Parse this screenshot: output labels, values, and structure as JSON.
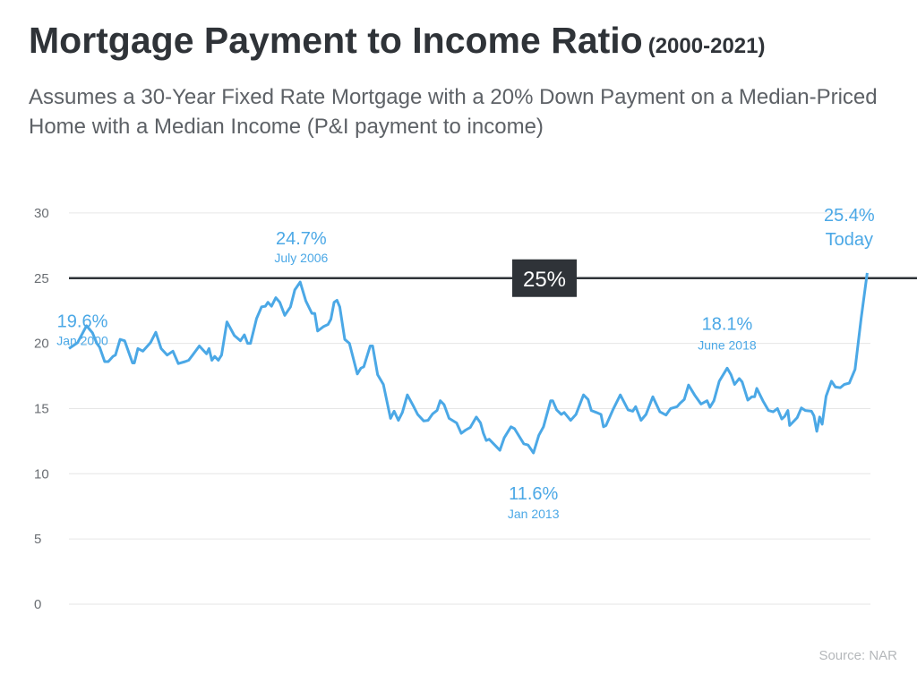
{
  "title": "Mortgage Payment to Income Ratio",
  "title_years": "(2000-2021)",
  "subtitle": "Assumes a 30-Year Fixed Rate Mortgage with a 20% Down Payment on a Median-Priced Home with a Median Income (P&I payment to income)",
  "source": "Source: NAR",
  "colors": {
    "line": "#4ba8e6",
    "reference": "#2f3338",
    "text": "#2f3338",
    "grid": "#e6e6e6"
  },
  "chart_data": {
    "type": "line",
    "title": "Mortgage Payment to Income Ratio (2000-2021)",
    "xlabel": "",
    "ylabel": "",
    "ylim": [
      0,
      30
    ],
    "yticks": [
      "0",
      "5",
      "10",
      "15",
      "20",
      "25",
      "30"
    ],
    "grid": true,
    "reference_line": {
      "value": 25,
      "label": "25%"
    },
    "series": [
      {
        "x": [
          2000.0,
          2000.24,
          2000.49,
          2000.66,
          2000.78,
          2000.86,
          2001.0,
          2001.1,
          2001.23,
          2001.3,
          2001.43,
          2001.56,
          2001.78,
          2001.83,
          2001.93,
          2002.07,
          2002.28,
          2002.43,
          2002.58,
          2002.75,
          2002.91,
          2003.06,
          2003.25,
          2003.35,
          2003.46,
          2003.65,
          2003.85,
          2003.92,
          2004.0,
          2004.08,
          2004.18,
          2004.27,
          2004.42,
          2004.63,
          2004.8,
          2004.91,
          2005.0,
          2005.08,
          2005.25,
          2005.39,
          2005.5,
          2005.57,
          2005.67,
          2005.79,
          2005.9,
          2006.04,
          2006.2,
          2006.32,
          2006.47,
          2006.63,
          2006.8,
          2006.88,
          2006.96,
          2007.13,
          2007.25,
          2007.33,
          2007.42,
          2007.5,
          2007.58,
          2007.72,
          2007.85,
          2008.07,
          2008.17,
          2008.25,
          2008.43,
          2008.5,
          2008.64,
          2008.8,
          2009.0,
          2009.1,
          2009.22,
          2009.33,
          2009.47,
          2009.63,
          2009.76,
          2009.93,
          2010.05,
          2010.18,
          2010.3,
          2010.39,
          2010.5,
          2010.64,
          2010.85,
          2010.98,
          2011.1,
          2011.23,
          2011.4,
          2011.52,
          2011.6,
          2011.68,
          2011.76,
          2012.06,
          2012.18,
          2012.37,
          2012.47,
          2012.73,
          2012.85,
          2013.0,
          2013.15,
          2013.28,
          2013.48,
          2013.54,
          2013.65,
          2013.78,
          2013.86,
          2014.04,
          2014.19,
          2014.4,
          2014.53,
          2014.62,
          2014.76,
          2014.89,
          2014.96,
          2015.03,
          2015.24,
          2015.43,
          2015.65,
          2015.78,
          2015.86,
          2016.01,
          2016.15,
          2016.34,
          2016.54,
          2016.71,
          2016.84,
          2017.02,
          2017.1,
          2017.22,
          2017.34,
          2017.51,
          2017.69,
          2017.86,
          2017.94,
          2018.05,
          2018.2,
          2018.42,
          2018.53,
          2018.63,
          2018.76,
          2018.84,
          2019.0,
          2019.11,
          2019.19,
          2019.25,
          2019.42,
          2019.58,
          2019.71,
          2019.83,
          2019.95,
          2020.03,
          2020.12,
          2020.17,
          2020.38,
          2020.5,
          2020.61,
          2020.78,
          2020.85,
          2020.93,
          2021.01,
          2021.08,
          2021.19,
          2021.34,
          2021.45,
          2021.59,
          2021.7,
          2021.84,
          2022.0,
          2022.17,
          2022.34
        ],
        "y": [
          19.6,
          20.05,
          21.35,
          20.8,
          20.0,
          19.7,
          18.6,
          18.6,
          19.0,
          19.1,
          20.3,
          20.2,
          18.5,
          18.5,
          19.6,
          19.4,
          20.05,
          20.85,
          19.6,
          19.1,
          19.4,
          18.45,
          18.6,
          18.7,
          19.1,
          19.8,
          19.2,
          19.6,
          18.7,
          19.0,
          18.7,
          19.1,
          21.65,
          20.6,
          20.2,
          20.65,
          20.0,
          20.0,
          21.9,
          22.8,
          22.85,
          23.15,
          22.85,
          23.5,
          23.15,
          22.15,
          22.8,
          24.1,
          24.7,
          23.25,
          22.3,
          22.3,
          20.95,
          21.3,
          21.45,
          21.85,
          23.15,
          23.3,
          22.8,
          20.3,
          20.0,
          17.65,
          18.1,
          18.2,
          19.8,
          19.8,
          17.6,
          16.85,
          14.25,
          14.8,
          14.1,
          14.7,
          16.05,
          15.25,
          14.55,
          14.05,
          14.1,
          14.6,
          14.85,
          15.6,
          15.3,
          14.25,
          13.9,
          13.1,
          13.35,
          13.55,
          14.35,
          13.9,
          13.1,
          12.55,
          12.65,
          11.8,
          12.75,
          13.6,
          13.45,
          12.3,
          12.2,
          11.6,
          12.95,
          13.6,
          15.6,
          15.6,
          14.9,
          14.55,
          14.7,
          14.1,
          14.55,
          16.05,
          15.7,
          14.85,
          14.7,
          14.55,
          13.6,
          13.7,
          15.0,
          16.05,
          14.9,
          14.8,
          15.15,
          14.1,
          14.55,
          15.9,
          14.75,
          14.5,
          15.0,
          15.15,
          15.4,
          15.7,
          16.8,
          16.05,
          15.35,
          15.6,
          15.1,
          15.6,
          17.1,
          18.1,
          17.6,
          16.85,
          17.3,
          17.05,
          15.65,
          15.9,
          15.9,
          16.55,
          15.6,
          14.85,
          14.75,
          15.0,
          14.2,
          14.4,
          14.85,
          13.7,
          14.3,
          15.05,
          14.85,
          14.8,
          14.45,
          13.25,
          14.35,
          13.8,
          15.95,
          17.1,
          16.65,
          16.6,
          16.85,
          16.95,
          18.0,
          21.9,
          25.4
        ]
      }
    ],
    "annotations": [
      {
        "value": "19.6%",
        "label": "Jan 2000",
        "x": 2000.0,
        "y": 19.6
      },
      {
        "value": "24.7%",
        "label": "July 2006",
        "x": 2006.5,
        "y": 24.7
      },
      {
        "value": "11.6%",
        "label": "Jan 2013",
        "x": 2013.0,
        "y": 11.6
      },
      {
        "value": "18.1%",
        "label": "June 2018",
        "x": 2018.42,
        "y": 18.1
      },
      {
        "value": "25.4%",
        "label": "Today",
        "x": 2022.34,
        "y": 25.4
      }
    ]
  }
}
